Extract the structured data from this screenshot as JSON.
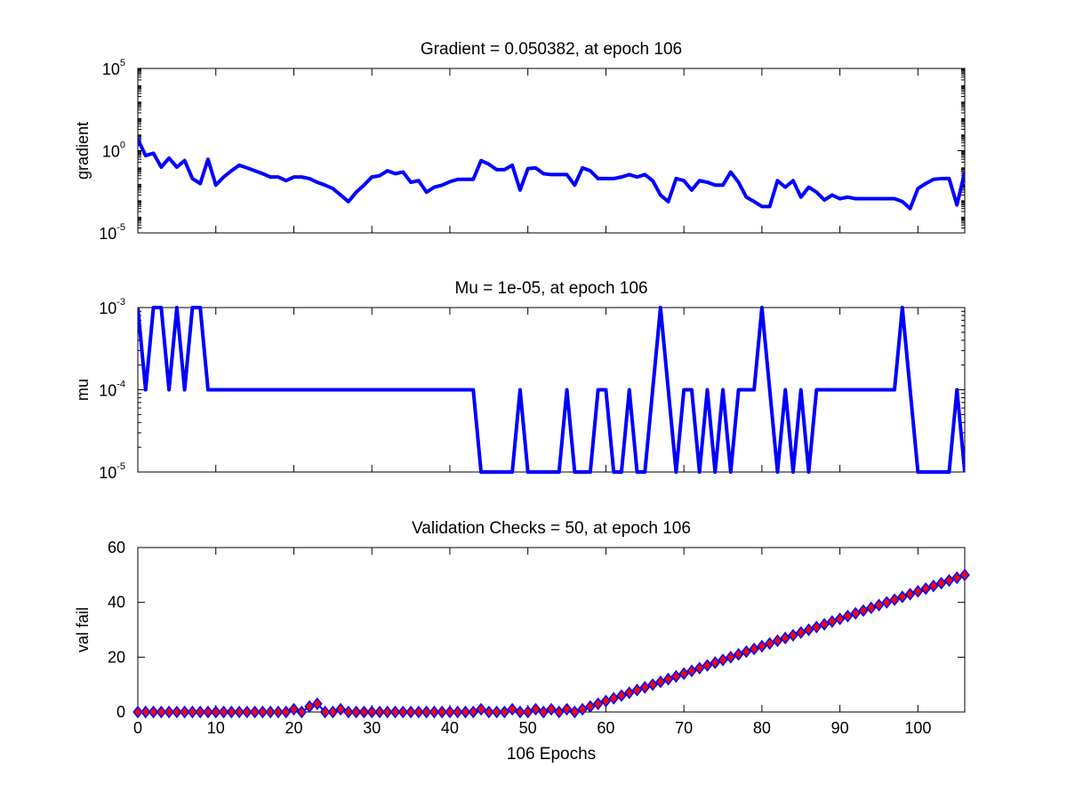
{
  "chart_data": [
    {
      "type": "line",
      "title": "Gradient = 0.050382, at epoch 106",
      "ylabel": "gradient",
      "xlabel": "",
      "yscale": "log",
      "xlim": [
        0,
        106
      ],
      "ylim": [
        1e-05,
        100000
      ],
      "yticks": [
        {
          "value": 1e-05,
          "base": "10",
          "exp": "-5"
        },
        {
          "value": 1,
          "base": "10",
          "exp": "0"
        },
        {
          "value": 100000,
          "base": "10",
          "exp": "5"
        }
      ],
      "color": "#0000ff",
      "series": [
        {
          "x": [
            0,
            1,
            2,
            3,
            4,
            5,
            6,
            7,
            8,
            9,
            10,
            11,
            12,
            13,
            14,
            15,
            16,
            17,
            18,
            19,
            20,
            21,
            22,
            23,
            24,
            25,
            26,
            27,
            28,
            29,
            30,
            31,
            32,
            33,
            34,
            35,
            36,
            37,
            38,
            39,
            40,
            41,
            42,
            43,
            44,
            45,
            46,
            47,
            48,
            49,
            50,
            51,
            52,
            53,
            54,
            55,
            56,
            57,
            58,
            59,
            60,
            61,
            62,
            63,
            64,
            65,
            66,
            67,
            68,
            69,
            70,
            71,
            72,
            73,
            74,
            75,
            76,
            77,
            78,
            79,
            80,
            81,
            82,
            83,
            84,
            85,
            86,
            87,
            88,
            89,
            90,
            91,
            92,
            93,
            94,
            95,
            96,
            97,
            98,
            99,
            100,
            101,
            102,
            103,
            104,
            105,
            106
          ],
          "y": [
            5.0,
            0.5,
            0.7,
            0.1,
            0.35,
            0.1,
            0.25,
            0.02,
            0.01,
            0.3,
            0.008,
            0.025,
            0.06,
            0.13,
            0.09,
            0.06,
            0.04,
            0.025,
            0.025,
            0.015,
            0.025,
            0.025,
            0.02,
            0.012,
            0.008,
            0.005,
            0.002,
            0.0008,
            0.003,
            0.008,
            0.025,
            0.03,
            0.06,
            0.04,
            0.05,
            0.012,
            0.015,
            0.003,
            0.006,
            0.008,
            0.013,
            0.018,
            0.018,
            0.018,
            0.25,
            0.15,
            0.07,
            0.07,
            0.13,
            0.004,
            0.08,
            0.09,
            0.04,
            0.035,
            0.035,
            0.035,
            0.008,
            0.09,
            0.06,
            0.02,
            0.02,
            0.02,
            0.025,
            0.035,
            0.025,
            0.035,
            0.015,
            0.002,
            0.0008,
            0.02,
            0.015,
            0.004,
            0.015,
            0.012,
            0.008,
            0.008,
            0.05,
            0.012,
            0.0015,
            0.0008,
            0.0004,
            0.0004,
            0.015,
            0.006,
            0.015,
            0.0015,
            0.006,
            0.003,
            0.001,
            0.002,
            0.0012,
            0.0015,
            0.0012,
            0.0012,
            0.0012,
            0.0012,
            0.0012,
            0.0012,
            0.0008,
            0.0003,
            0.005,
            0.01,
            0.018,
            0.02,
            0.02,
            0.0005,
            0.05
          ]
        }
      ]
    },
    {
      "type": "line",
      "title": "Mu = 1e-05, at epoch 106",
      "ylabel": "mu",
      "xlabel": "",
      "yscale": "log",
      "xlim": [
        0,
        106
      ],
      "ylim": [
        1e-05,
        0.001
      ],
      "yticks": [
        {
          "value": 1e-05,
          "base": "10",
          "exp": "-5"
        },
        {
          "value": 0.0001,
          "base": "10",
          "exp": "-4"
        },
        {
          "value": 0.001,
          "base": "10",
          "exp": "-3"
        }
      ],
      "color": "#0000ff",
      "series": [
        {
          "x": [
            0,
            1,
            2,
            3,
            4,
            5,
            6,
            7,
            8,
            9,
            10,
            11,
            12,
            13,
            14,
            15,
            16,
            17,
            18,
            19,
            20,
            21,
            22,
            23,
            24,
            25,
            26,
            27,
            28,
            29,
            30,
            31,
            32,
            33,
            34,
            35,
            36,
            37,
            38,
            39,
            40,
            41,
            42,
            43,
            44,
            45,
            46,
            47,
            48,
            49,
            50,
            51,
            52,
            53,
            54,
            55,
            56,
            57,
            58,
            59,
            60,
            61,
            62,
            63,
            64,
            65,
            66,
            67,
            68,
            69,
            70,
            71,
            72,
            73,
            74,
            75,
            76,
            77,
            78,
            79,
            80,
            81,
            82,
            83,
            84,
            85,
            86,
            87,
            88,
            89,
            90,
            91,
            92,
            93,
            94,
            95,
            96,
            97,
            98,
            99,
            100,
            101,
            102,
            103,
            104,
            105,
            106
          ],
          "y": [
            0.001,
            0.0001,
            0.001,
            0.001,
            0.0001,
            0.001,
            0.0001,
            0.001,
            0.001,
            0.0001,
            0.0001,
            0.0001,
            0.0001,
            0.0001,
            0.0001,
            0.0001,
            0.0001,
            0.0001,
            0.0001,
            0.0001,
            0.0001,
            0.0001,
            0.0001,
            0.0001,
            0.0001,
            0.0001,
            0.0001,
            0.0001,
            0.0001,
            0.0001,
            0.0001,
            0.0001,
            0.0001,
            0.0001,
            0.0001,
            0.0001,
            0.0001,
            0.0001,
            0.0001,
            0.0001,
            0.0001,
            0.0001,
            0.0001,
            0.0001,
            1e-05,
            1e-05,
            1e-05,
            1e-05,
            1e-05,
            0.0001,
            1e-05,
            1e-05,
            1e-05,
            1e-05,
            1e-05,
            0.0001,
            1e-05,
            1e-05,
            1e-05,
            0.0001,
            0.0001,
            1e-05,
            1e-05,
            0.0001,
            1e-05,
            1e-05,
            0.0001,
            0.001,
            0.0001,
            1e-05,
            0.0001,
            0.0001,
            1e-05,
            0.0001,
            1e-05,
            0.0001,
            1e-05,
            0.0001,
            0.0001,
            0.0001,
            0.001,
            0.0001,
            1e-05,
            0.0001,
            1e-05,
            0.0001,
            1e-05,
            0.0001,
            0.0001,
            0.0001,
            0.0001,
            0.0001,
            0.0001,
            0.0001,
            0.0001,
            0.0001,
            0.0001,
            0.0001,
            0.001,
            0.0001,
            1e-05,
            1e-05,
            1e-05,
            1e-05,
            1e-05,
            0.0001,
            1e-05
          ]
        }
      ]
    },
    {
      "type": "scatter",
      "title": "Validation Checks = 50, at epoch 106",
      "ylabel": "val fail",
      "xlabel": "106 Epochs",
      "yscale": "linear",
      "xlim": [
        0,
        106
      ],
      "ylim": [
        0,
        60
      ],
      "xticks": [
        0,
        10,
        20,
        30,
        40,
        50,
        60,
        70,
        80,
        90,
        100
      ],
      "yticks": [
        0,
        20,
        40,
        60
      ],
      "color": "#0000ff",
      "marker_fill": "#ff0000",
      "marker": "diamond",
      "series": [
        {
          "x": [
            0,
            1,
            2,
            3,
            4,
            5,
            6,
            7,
            8,
            9,
            10,
            11,
            12,
            13,
            14,
            15,
            16,
            17,
            18,
            19,
            20,
            21,
            22,
            23,
            24,
            25,
            26,
            27,
            28,
            29,
            30,
            31,
            32,
            33,
            34,
            35,
            36,
            37,
            38,
            39,
            40,
            41,
            42,
            43,
            44,
            45,
            46,
            47,
            48,
            49,
            50,
            51,
            52,
            53,
            54,
            55,
            56,
            57,
            58,
            59,
            60,
            61,
            62,
            63,
            64,
            65,
            66,
            67,
            68,
            69,
            70,
            71,
            72,
            73,
            74,
            75,
            76,
            77,
            78,
            79,
            80,
            81,
            82,
            83,
            84,
            85,
            86,
            87,
            88,
            89,
            90,
            91,
            92,
            93,
            94,
            95,
            96,
            97,
            98,
            99,
            100,
            101,
            102,
            103,
            104,
            105,
            106
          ],
          "y": [
            0,
            0,
            0,
            0,
            0,
            0,
            0,
            0,
            0,
            0,
            0,
            0,
            0,
            0,
            0,
            0,
            0,
            0,
            0,
            0,
            1,
            0,
            2,
            3,
            0,
            0,
            1,
            0,
            0,
            0,
            0,
            0,
            0,
            0,
            0,
            0,
            0,
            0,
            0,
            0,
            0,
            0,
            0,
            0,
            1,
            0,
            0,
            0,
            1,
            0,
            0,
            1,
            0,
            1,
            0,
            1,
            0,
            1,
            2,
            3,
            4,
            5,
            6,
            7,
            8,
            9,
            10,
            11,
            12,
            13,
            14,
            15,
            16,
            17,
            18,
            19,
            20,
            21,
            22,
            23,
            24,
            25,
            26,
            27,
            28,
            29,
            30,
            31,
            32,
            33,
            34,
            35,
            36,
            37,
            38,
            39,
            40,
            41,
            42,
            43,
            44,
            45,
            46,
            47,
            48,
            49,
            50
          ]
        }
      ]
    }
  ]
}
